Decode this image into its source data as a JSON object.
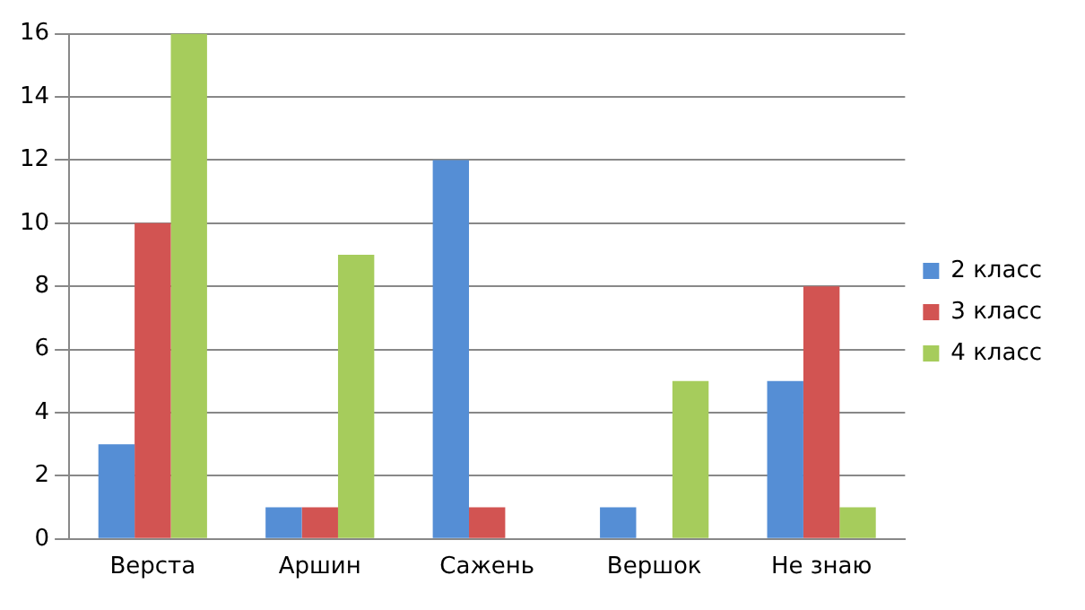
{
  "chart_data": {
    "type": "bar",
    "categories": [
      "Верста",
      "Аршин",
      "Сажень",
      "Вершок",
      "Не знаю"
    ],
    "series": [
      {
        "name": "2 класс",
        "color": "#558ed5",
        "values": [
          3,
          1,
          12,
          1,
          5
        ]
      },
      {
        "name": "3 класс",
        "color": "#d25452",
        "values": [
          10,
          1,
          1,
          0,
          8
        ]
      },
      {
        "name": "4 класс",
        "color": "#a6cc5c",
        "values": [
          16,
          9,
          0,
          5,
          1
        ]
      }
    ],
    "ylim": [
      0,
      16
    ],
    "yticks": [
      0,
      2,
      4,
      6,
      8,
      10,
      12,
      14,
      16
    ],
    "grid": "y",
    "legend": "right"
  }
}
